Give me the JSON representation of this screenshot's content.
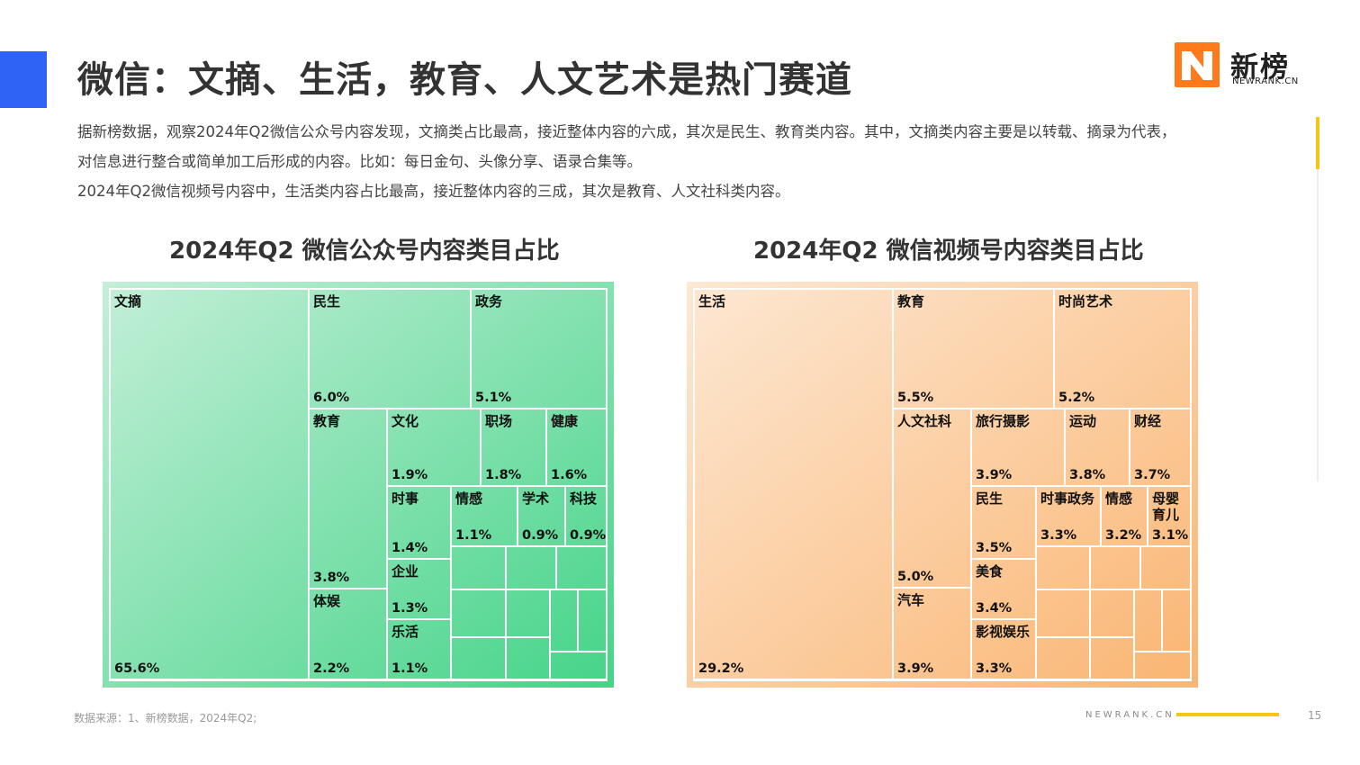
{
  "header": {
    "title": "微信：文摘、生活，教育、人文艺术是热门赛道",
    "logo_text": "新榜",
    "logo_sub": "NEWRANK.CN"
  },
  "description": [
    "据新榜数据，观察2024年Q2微信公众号内容发现，文摘类占比最高，接近整体内容的六成，其次是民生、教育类内容。其中，文摘类内容主要是以转载、摘录为代表，",
    "对信息进行整合或简单加工后形成的内容。比如：每日金句、头像分享、语录合集等。",
    "2024年Q2微信视频号内容中，生活类内容占比最高，接近整体内容的三成，其次是教育、人文社科类内容。"
  ],
  "chart_data": [
    {
      "type": "treemap",
      "title": "2024年Q2 微信公众号内容类目占比",
      "colors": {
        "bg_start": "#c3efd8",
        "bg_end": "#45d488",
        "border": "#ffffff"
      },
      "items": [
        {
          "name": "文摘",
          "value": 65.6,
          "value_label": "65.6%"
        },
        {
          "name": "民生",
          "value": 6.0,
          "value_label": "6.0%"
        },
        {
          "name": "政务",
          "value": 5.1,
          "value_label": "5.1%"
        },
        {
          "name": "教育",
          "value": 3.8,
          "value_label": "3.8%"
        },
        {
          "name": "体娱",
          "value": 2.2,
          "value_label": "2.2%"
        },
        {
          "name": "文化",
          "value": 1.9,
          "value_label": "1.9%"
        },
        {
          "name": "职场",
          "value": 1.8,
          "value_label": "1.8%"
        },
        {
          "name": "健康",
          "value": 1.6,
          "value_label": "1.6%"
        },
        {
          "name": "时事",
          "value": 1.4,
          "value_label": "1.4%"
        },
        {
          "name": "情感",
          "value": 1.1,
          "value_label": "1.1%"
        },
        {
          "name": "学术",
          "value": 0.9,
          "value_label": "0.9%"
        },
        {
          "name": "科技",
          "value": 0.9,
          "value_label": "0.9%"
        },
        {
          "name": "企业",
          "value": 1.3,
          "value_label": "1.3%"
        },
        {
          "name": "乐活",
          "value": 1.1,
          "value_label": "1.1%"
        }
      ]
    },
    {
      "type": "treemap",
      "title": "2024年Q2 微信视频号内容类目占比",
      "colors": {
        "bg_start": "#fde8d3",
        "bg_end": "#fab572",
        "border": "#ffffff"
      },
      "items": [
        {
          "name": "生活",
          "value": 29.2,
          "value_label": "29.2%"
        },
        {
          "name": "教育",
          "value": 5.5,
          "value_label": "5.5%"
        },
        {
          "name": "时尚艺术",
          "value": 5.2,
          "value_label": "5.2%"
        },
        {
          "name": "人文社科",
          "value": 5.0,
          "value_label": "5.0%"
        },
        {
          "name": "汽车",
          "value": 3.9,
          "value_label": "3.9%"
        },
        {
          "name": "旅行摄影",
          "value": 3.9,
          "value_label": "3.9%"
        },
        {
          "name": "运动",
          "value": 3.8,
          "value_label": "3.8%"
        },
        {
          "name": "财经",
          "value": 3.7,
          "value_label": "3.7%"
        },
        {
          "name": "民生",
          "value": 3.5,
          "value_label": "3.5%"
        },
        {
          "name": "时事政务",
          "value": 3.3,
          "value_label": "3.3%"
        },
        {
          "name": "情感",
          "value": 3.2,
          "value_label": "3.2%"
        },
        {
          "name": "母婴育儿",
          "value": 3.1,
          "value_label": "3.1%"
        },
        {
          "name": "美食",
          "value": 3.4,
          "value_label": "3.4%"
        },
        {
          "name": "影视娱乐",
          "value": 3.3,
          "value_label": "3.3%"
        }
      ]
    }
  ],
  "footer": {
    "source": "数据来源：1、新榜数据，2024年Q2;",
    "brand": "NEWRANK.CN",
    "page": "15"
  }
}
